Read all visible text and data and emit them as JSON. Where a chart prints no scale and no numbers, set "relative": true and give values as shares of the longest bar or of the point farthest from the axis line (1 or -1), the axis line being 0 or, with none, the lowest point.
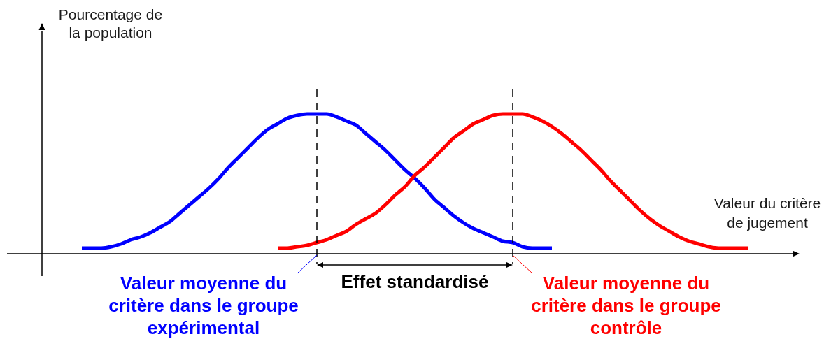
{
  "chart_data": {
    "type": "line",
    "relative": true,
    "xlabel": "Valeur du critère\nde jugement",
    "ylabel": "Pourcentage de\nla population",
    "categories": [
      null,
      null,
      null,
      null,
      null,
      null,
      null,
      null,
      null,
      null,
      null,
      null,
      null,
      null,
      null,
      null,
      null,
      null,
      null,
      null,
      null,
      null,
      null,
      null,
      null,
      null,
      null,
      null,
      null,
      null,
      null,
      null,
      null,
      null,
      null,
      null,
      null,
      null,
      null,
      null,
      null,
      null,
      null,
      null,
      null,
      null,
      null,
      null,
      null,
      null,
      null,
      null,
      null,
      null,
      null,
      null,
      null,
      null,
      null,
      null,
      null,
      null,
      null,
      null,
      null,
      null,
      null,
      null,
      null
    ],
    "series": [
      {
        "color": "#0000ff",
        "values": [
          0.04,
          0.04,
          0.04,
          0.05,
          0.07,
          0.1,
          0.12,
          0.15,
          0.19,
          0.23,
          0.29,
          0.35,
          0.41,
          0.47,
          0.54,
          0.62,
          0.69,
          0.76,
          0.83,
          0.89,
          0.93,
          0.97,
          0.99,
          1,
          1,
          1,
          0.98,
          0.95,
          0.92,
          0.86,
          0.8,
          0.74,
          0.67,
          0.6,
          0.54,
          0.47,
          0.39,
          0.33,
          0.27,
          0.22,
          0.18,
          0.15,
          0.12,
          0.09,
          0.08,
          0.05,
          0.04,
          0.04,
          0.04,
          null,
          null,
          null,
          null,
          null,
          null,
          null,
          null,
          null,
          null,
          null,
          null,
          null,
          null,
          null,
          null,
          null,
          null,
          null,
          null
        ]
      },
      {
        "color": "#ff0000",
        "values": [
          null,
          null,
          null,
          null,
          null,
          null,
          null,
          null,
          null,
          null,
          null,
          null,
          null,
          null,
          null,
          null,
          null,
          null,
          null,
          null,
          0.04,
          0.04,
          0.05,
          0.06,
          0.08,
          0.1,
          0.13,
          0.16,
          0.21,
          0.25,
          0.29,
          0.35,
          0.42,
          0.48,
          0.56,
          0.62,
          0.69,
          0.76,
          0.83,
          0.88,
          0.93,
          0.96,
          0.99,
          1,
          1,
          1,
          0.98,
          0.95,
          0.91,
          0.86,
          0.8,
          0.74,
          0.67,
          0.6,
          0.52,
          0.45,
          0.38,
          0.31,
          0.25,
          0.2,
          0.16,
          0.12,
          0.09,
          0.07,
          0.05,
          0.04,
          0.04,
          0.04,
          0.04
        ]
      }
    ],
    "annotations": [
      "Valeur moyenne du\ncritère dans le groupe\nexpérimental",
      "Effet standardisé",
      "Valeur moyenne du\ncritère dans le groupe\ncontrôle"
    ]
  }
}
